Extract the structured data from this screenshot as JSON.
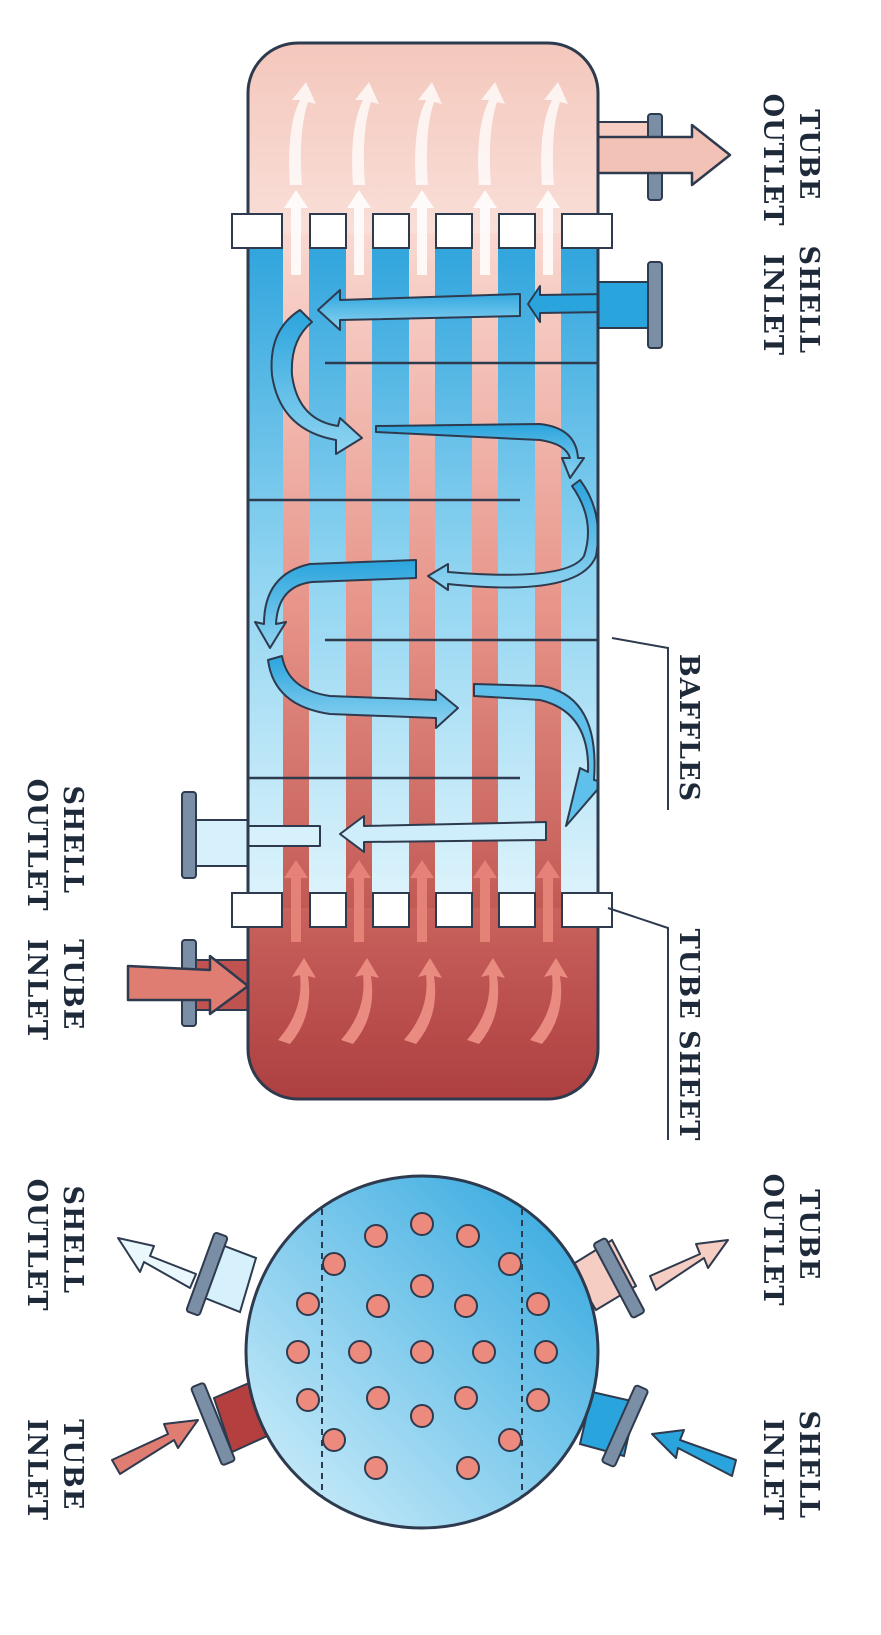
{
  "labels": {
    "main_tube_outlet": [
      "TUBE",
      "OUTLET"
    ],
    "main_shell_inlet": [
      "SHELL",
      "INLET"
    ],
    "main_baffles": [
      "BAFFLES"
    ],
    "main_tube_sheet": [
      "TUBE SHEET"
    ],
    "main_shell_outlet": [
      "SHELL",
      "OUTLET"
    ],
    "main_tube_inlet": [
      "TUBE",
      "INLET"
    ],
    "cross_tube_outlet": [
      "TUBE",
      "OUTLET"
    ],
    "cross_shell_inlet": [
      "SHELL",
      "INLET"
    ],
    "cross_shell_outlet": [
      "SHELL",
      "OUTLET"
    ],
    "cross_tube_inlet": [
      "TUBE",
      "INLET"
    ]
  },
  "colors": {
    "hot": "#b94a48",
    "hot_light": "#f5cfc6",
    "cold": "#2aa4dd",
    "cold_light": "#d6f1fb",
    "outline": "#2e3a4e",
    "flange": "#7a8ea6"
  }
}
